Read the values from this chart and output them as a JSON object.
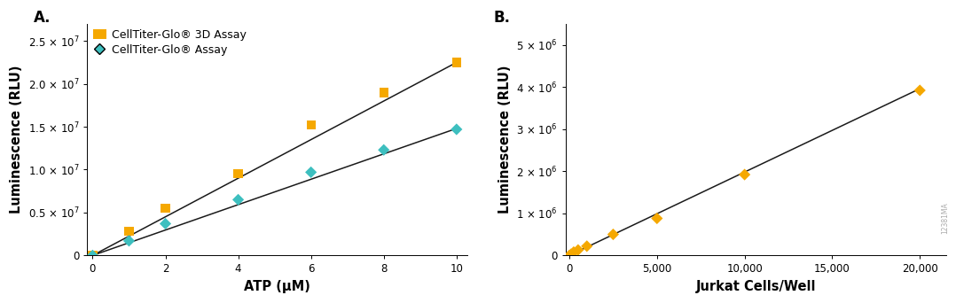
{
  "panel_A": {
    "label": "A.",
    "xlabel": "ATP (μM)",
    "ylabel": "Luminescence (RLU)",
    "xlim": [
      -0.15,
      10.3
    ],
    "ylim": [
      0,
      27000000.0
    ],
    "yticks": [
      0,
      5000000.0,
      10000000.0,
      15000000.0,
      20000000.0,
      25000000.0
    ],
    "yticklabels": [
      "0",
      "0.5 × 10$^7$",
      "1.0 × 10$^7$",
      "1.5 × 10$^7$",
      "2.0 × 10$^7$",
      "2.5 × 10$^7$"
    ],
    "xticks": [
      0,
      2,
      4,
      6,
      8,
      10
    ],
    "series": [
      {
        "name": "CellTiter-Glo® 3D Assay",
        "color": "#F5A800",
        "marker": "s",
        "x": [
          0,
          1,
          2,
          4,
          6,
          8,
          10
        ],
        "y": [
          0,
          2800000,
          5500000,
          9500000,
          15200000,
          19000000,
          22500000
        ],
        "fit_x": [
          0,
          10
        ],
        "fit_y": [
          0,
          22500000
        ]
      },
      {
        "name": "CellTiter-Glo® Assay",
        "color": "#3DBFBF",
        "marker": "D",
        "x": [
          0,
          1,
          2,
          4,
          6,
          8,
          10
        ],
        "y": [
          0,
          1700000,
          3700000,
          6500000,
          9700000,
          12300000,
          14700000
        ],
        "fit_x": [
          0,
          10
        ],
        "fit_y": [
          0,
          14800000
        ]
      }
    ]
  },
  "panel_B": {
    "label": "B.",
    "xlabel": "Jurkat Cells/Well",
    "ylabel": "Luminescence (RLU)",
    "xlim": [
      -200,
      21500
    ],
    "ylim": [
      0,
      5500000.0
    ],
    "yticks": [
      0,
      1000000.0,
      2000000.0,
      3000000.0,
      4000000.0,
      5000000.0
    ],
    "yticklabels": [
      "0",
      "1 × 10$^6$",
      "2 × 10$^6$",
      "3 × 10$^6$",
      "4 × 10$^6$",
      "5 × 10$^6$"
    ],
    "xticks": [
      0,
      5000,
      10000,
      15000,
      20000
    ],
    "xticklabels": [
      "0",
      "5,000",
      "10,000",
      "15,000",
      "20,000"
    ],
    "series": [
      {
        "name": "CellTiter-Glo® 3D Assay",
        "color": "#F5A800",
        "marker": "D",
        "x": [
          0,
          100,
          250,
          500,
          1000,
          2500,
          5000,
          10000,
          20000
        ],
        "y": [
          0,
          30000,
          80000,
          130000,
          220000,
          500000,
          880000,
          1920000,
          3920000
        ],
        "fit_x": [
          0,
          20000
        ],
        "fit_y": [
          0,
          3960000
        ]
      }
    ],
    "watermark": "12381MA"
  },
  "background_color": "#FFFFFF",
  "line_color": "#1a1a1a",
  "tick_fontsize": 8.5,
  "axis_label_fontsize": 10.5,
  "legend_fontsize": 9
}
